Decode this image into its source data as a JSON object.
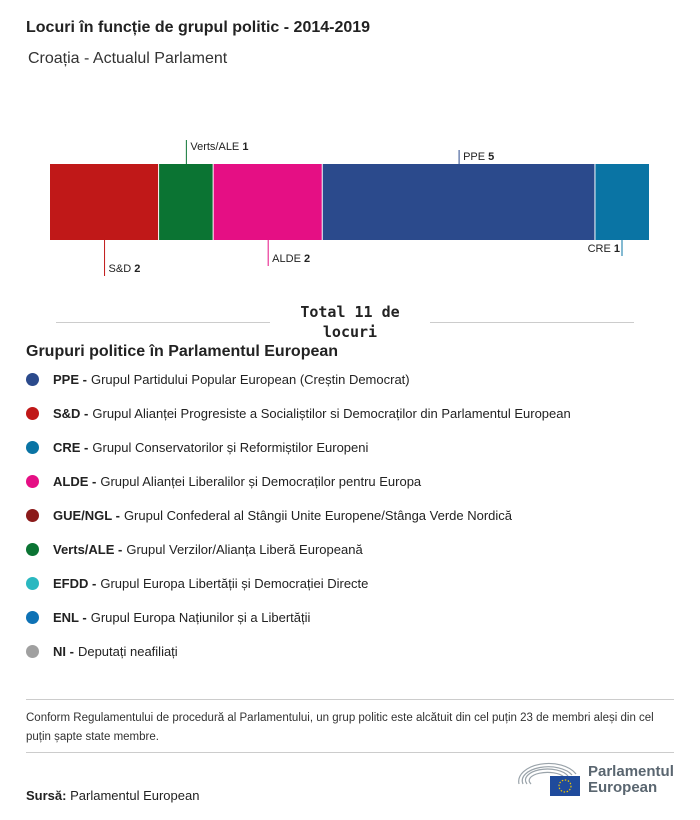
{
  "title": "Locuri în funcție de grupul politic - 2014-2019",
  "subtitle": "Croația - Actualul Parlament",
  "chart_data": {
    "type": "bar",
    "orientation": "stacked-horizontal",
    "categories": [
      "S&D",
      "Verts/ALE",
      "ALDE",
      "PPE",
      "CRE"
    ],
    "values": [
      2,
      1,
      2,
      5,
      1
    ],
    "colors": [
      "#c01818",
      "#0b7433",
      "#e50f84",
      "#2b4a8c",
      "#0a74a4"
    ],
    "total_label": "Total 11 de locuri"
  },
  "legend": {
    "title": "Grupuri politice în Parlamentul European",
    "items": [
      {
        "abbr": "PPE -",
        "name": "Grupul Partidului Popular European (Creștin Democrat)",
        "color": "#2b4a8c"
      },
      {
        "abbr": "S&D -",
        "name": "Grupul Alianței Progresiste a Socialiștilor si Democraților din Parlamentul European",
        "color": "#c01818"
      },
      {
        "abbr": "CRE -",
        "name": "Grupul Conservatorilor și Reformiștilor Europeni",
        "color": "#0a74a4"
      },
      {
        "abbr": "ALDE -",
        "name": "Grupul Alianței Liberalilor și Democraților pentru Europa",
        "color": "#e50f84"
      },
      {
        "abbr": "GUE/NGL -",
        "name": "Grupul Confederal al Stângii Unite Europene/Stânga Verde Nordică",
        "color": "#8b1a1a"
      },
      {
        "abbr": "Verts/ALE -",
        "name": "Grupul Verzilor/Alianța Liberă Europeană",
        "color": "#0b7433"
      },
      {
        "abbr": "EFDD -",
        "name": "Grupul Europa Libertății și Democrației Directe",
        "color": "#2ab8c0"
      },
      {
        "abbr": "ENL -",
        "name": "Grupul Europa Națiunilor și a Libertății",
        "color": "#0e72b5"
      },
      {
        "abbr": "NI -",
        "name": "Deputați neafiliați",
        "color": "#a0a0a0"
      }
    ]
  },
  "note": "Conform Regulamentului de procedură al Parlamentului, un grup politic este alcătuit din cel puțin 23 de membri aleși din cel puțin șapte state membre.",
  "source": {
    "label": "Sursă:",
    "value": "Parlamentul European"
  },
  "logo": {
    "line1": "Parlamentul",
    "line2": "European"
  }
}
